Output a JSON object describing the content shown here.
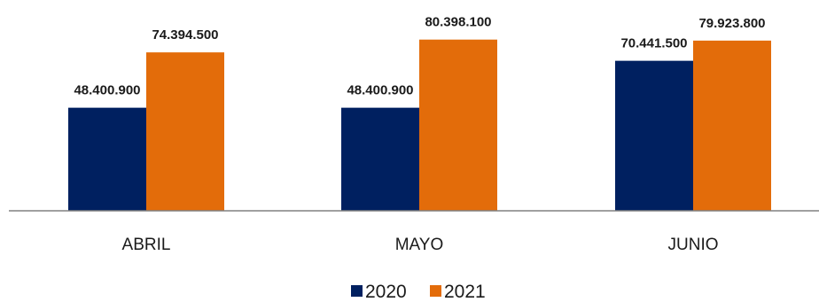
{
  "chart_data": {
    "type": "bar",
    "categories": [
      "ABRIL",
      "MAYO",
      "JUNIO"
    ],
    "series": [
      {
        "name": "2020",
        "color": "#002060",
        "values": [
          48400900,
          48400900,
          70441500
        ],
        "labels": [
          "48.400.900",
          "48.400.900",
          "70.441.500"
        ]
      },
      {
        "name": "2021",
        "color": "#E36C0A",
        "values": [
          74394500,
          80398100,
          79923800
        ],
        "labels": [
          "74.394.500",
          "80.398.100",
          "79.923.800"
        ]
      }
    ],
    "ylim": [
      0,
      94000000
    ],
    "grid": false,
    "legend_position": "bottom"
  }
}
